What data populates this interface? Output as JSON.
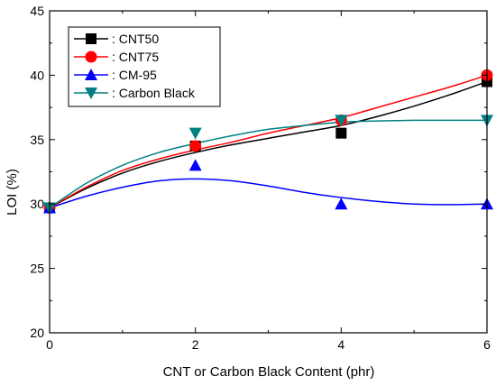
{
  "chart_data": {
    "type": "line",
    "xlabel": "CNT or Carbon Black Content (phr)",
    "ylabel": "LOI (%)",
    "xlim": [
      0,
      6
    ],
    "ylim": [
      20,
      45
    ],
    "xticks": [
      0,
      2,
      4,
      6
    ],
    "yticks": [
      20,
      25,
      30,
      35,
      40,
      45
    ],
    "grid": false,
    "legend": "top-left",
    "series": [
      {
        "name": ": CNT50",
        "marker": "square",
        "color": "#000000",
        "x": [
          0,
          2,
          4,
          6
        ],
        "y": [
          29.7,
          34.5,
          35.5,
          39.5
        ],
        "fit": [
          [
            0,
            29.7
          ],
          [
            0.5,
            31.2
          ],
          [
            1,
            32.4
          ],
          [
            1.5,
            33.3
          ],
          [
            2,
            34.0
          ],
          [
            2.5,
            34.6
          ],
          [
            3,
            35.1
          ],
          [
            3.5,
            35.6
          ],
          [
            4,
            36.1
          ],
          [
            4.5,
            36.8
          ],
          [
            5,
            37.6
          ],
          [
            5.5,
            38.5
          ],
          [
            6,
            39.5
          ]
        ]
      },
      {
        "name": ": CNT75",
        "marker": "circle",
        "color": "#ff0000",
        "x": [
          0,
          2,
          4,
          6
        ],
        "y": [
          29.7,
          34.5,
          36.5,
          40.0
        ],
        "fit": [
          [
            0,
            29.7
          ],
          [
            0.5,
            31.3
          ],
          [
            1,
            32.6
          ],
          [
            1.5,
            33.5
          ],
          [
            2,
            34.2
          ],
          [
            2.5,
            34.8
          ],
          [
            3,
            35.5
          ],
          [
            3.5,
            36.1
          ],
          [
            4,
            36.7
          ],
          [
            4.5,
            37.5
          ],
          [
            5,
            38.3
          ],
          [
            5.5,
            39.1
          ],
          [
            6,
            40.0
          ]
        ]
      },
      {
        "name": ": CM-95",
        "marker": "triangle-up",
        "color": "#0000ff",
        "x": [
          0,
          2,
          4,
          6
        ],
        "y": [
          29.7,
          33.0,
          30.0,
          30.0
        ],
        "fit": [
          [
            0,
            29.7
          ],
          [
            0.5,
            30.6
          ],
          [
            1,
            31.3
          ],
          [
            1.5,
            31.8
          ],
          [
            2,
            31.95
          ],
          [
            2.5,
            31.8
          ],
          [
            3,
            31.4
          ],
          [
            3.5,
            30.9
          ],
          [
            4,
            30.5
          ],
          [
            4.5,
            30.2
          ],
          [
            5,
            30.0
          ],
          [
            5.5,
            29.95
          ],
          [
            6,
            30.0
          ]
        ]
      },
      {
        "name": ": Carbon Black",
        "marker": "triangle-down",
        "color": "#008080",
        "x": [
          0,
          2,
          4,
          6
        ],
        "y": [
          29.7,
          35.5,
          36.5,
          36.5
        ],
        "fit": [
          [
            0,
            29.7
          ],
          [
            0.5,
            31.6
          ],
          [
            1,
            33.0
          ],
          [
            1.5,
            34.0
          ],
          [
            2,
            34.7
          ],
          [
            2.5,
            35.3
          ],
          [
            3,
            35.8
          ],
          [
            3.5,
            36.1
          ],
          [
            4,
            36.35
          ],
          [
            4.5,
            36.45
          ],
          [
            5,
            36.5
          ],
          [
            5.5,
            36.5
          ],
          [
            6,
            36.5
          ]
        ]
      }
    ]
  }
}
